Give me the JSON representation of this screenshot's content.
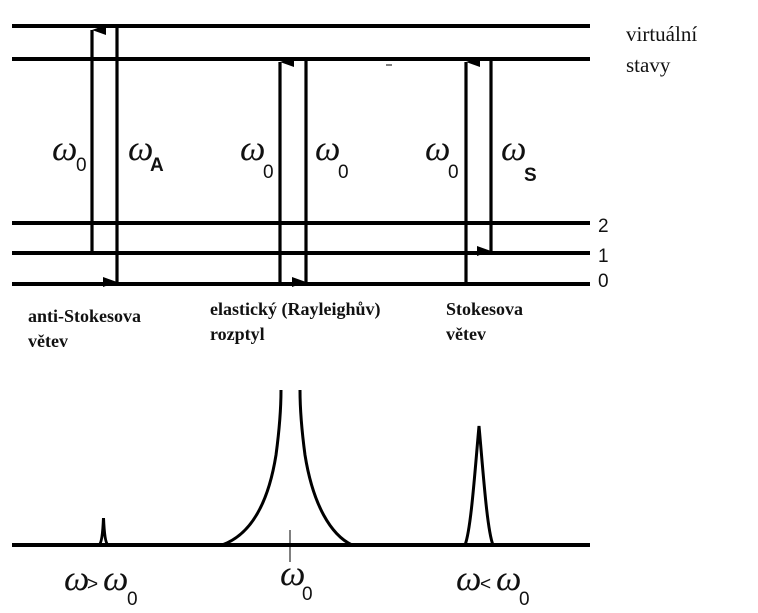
{
  "levels": {
    "virtual_label_1": "virtuální",
    "virtual_label_2": "stavy",
    "level_2": "2",
    "level_1": "1",
    "level_0": "0"
  },
  "transitions": {
    "anti_stokes": {
      "up_symbol": "ω",
      "up_sub": "0",
      "down_symbol": "ω",
      "down_sub": "A"
    },
    "rayleigh": {
      "up_symbol": "ω",
      "up_sub": "0",
      "down_symbol": "ω",
      "down_sub": "0"
    },
    "stokes": {
      "up_symbol": "ω",
      "up_sub": "0",
      "down_symbol": "ω",
      "down_sub": "S"
    }
  },
  "branch_labels": {
    "anti_stokes_1": "anti-Stokesova",
    "anti_stokes_2": "větev",
    "rayleigh_1": "elastický (Rayleighův)",
    "rayleigh_2": "rozptyl",
    "stokes_1": "Stokesova",
    "stokes_2": "větev"
  },
  "spectrum_labels": {
    "left": {
      "a": "ω",
      "op": ">",
      "b": "ω",
      "sub": "0"
    },
    "center": {
      "a": "ω",
      "sub": "0"
    },
    "right": {
      "a": "ω",
      "op": "<",
      "b": "ω",
      "sub": "0"
    }
  },
  "colors": {
    "ink": "#000000",
    "background": "#ffffff"
  }
}
